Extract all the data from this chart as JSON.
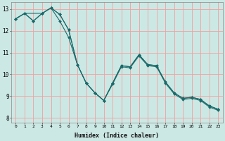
{
  "xlabel": "Humidex (Indice chaleur)",
  "background_color": "#cce8e4",
  "grid_color": "#f0a0a0",
  "line_color": "#1a6b6b",
  "xlim": [
    -0.5,
    23.5
  ],
  "ylim": [
    7.8,
    13.3
  ],
  "yticks": [
    8,
    9,
    10,
    11,
    12,
    13
  ],
  "xticks": [
    0,
    1,
    2,
    3,
    4,
    5,
    6,
    7,
    8,
    9,
    10,
    11,
    12,
    13,
    14,
    15,
    16,
    17,
    18,
    19,
    20,
    21,
    22,
    23
  ],
  "s1_x": [
    0,
    1,
    2,
    3,
    4,
    5,
    6,
    7,
    8,
    9,
    10,
    11,
    12,
    13,
    14,
    15,
    16,
    17,
    18,
    19,
    20,
    21,
    22,
    23
  ],
  "s1_y": [
    12.55,
    12.8,
    12.45,
    12.8,
    13.05,
    12.75,
    12.05,
    10.45,
    9.6,
    9.15,
    8.8,
    9.6,
    10.4,
    10.35,
    10.9,
    10.45,
    10.4,
    9.65,
    9.15,
    8.9,
    8.95,
    8.85,
    8.55,
    8.4
  ],
  "s2_x": [
    0,
    1,
    2,
    3,
    4,
    5,
    6,
    7,
    8,
    9,
    10,
    11,
    12,
    13,
    14,
    15,
    16,
    17,
    18,
    19,
    20,
    21,
    22,
    23
  ],
  "s2_y": [
    12.55,
    12.8,
    12.45,
    12.8,
    13.05,
    12.75,
    12.05,
    10.45,
    9.6,
    9.15,
    8.8,
    9.6,
    10.4,
    10.35,
    10.9,
    10.45,
    10.4,
    9.65,
    9.15,
    8.9,
    8.95,
    8.85,
    8.55,
    8.4
  ],
  "s3_x": [
    0,
    1,
    3,
    4,
    5,
    6,
    7,
    8,
    9,
    10,
    11,
    12,
    13,
    14,
    15,
    16,
    17,
    18,
    19,
    20,
    21,
    22,
    23
  ],
  "s3_y": [
    12.55,
    12.8,
    12.8,
    13.05,
    12.45,
    11.7,
    10.45,
    9.6,
    9.15,
    8.8,
    9.55,
    10.35,
    10.3,
    10.85,
    10.4,
    10.35,
    9.6,
    9.1,
    8.85,
    8.9,
    8.8,
    8.5,
    8.35
  ]
}
